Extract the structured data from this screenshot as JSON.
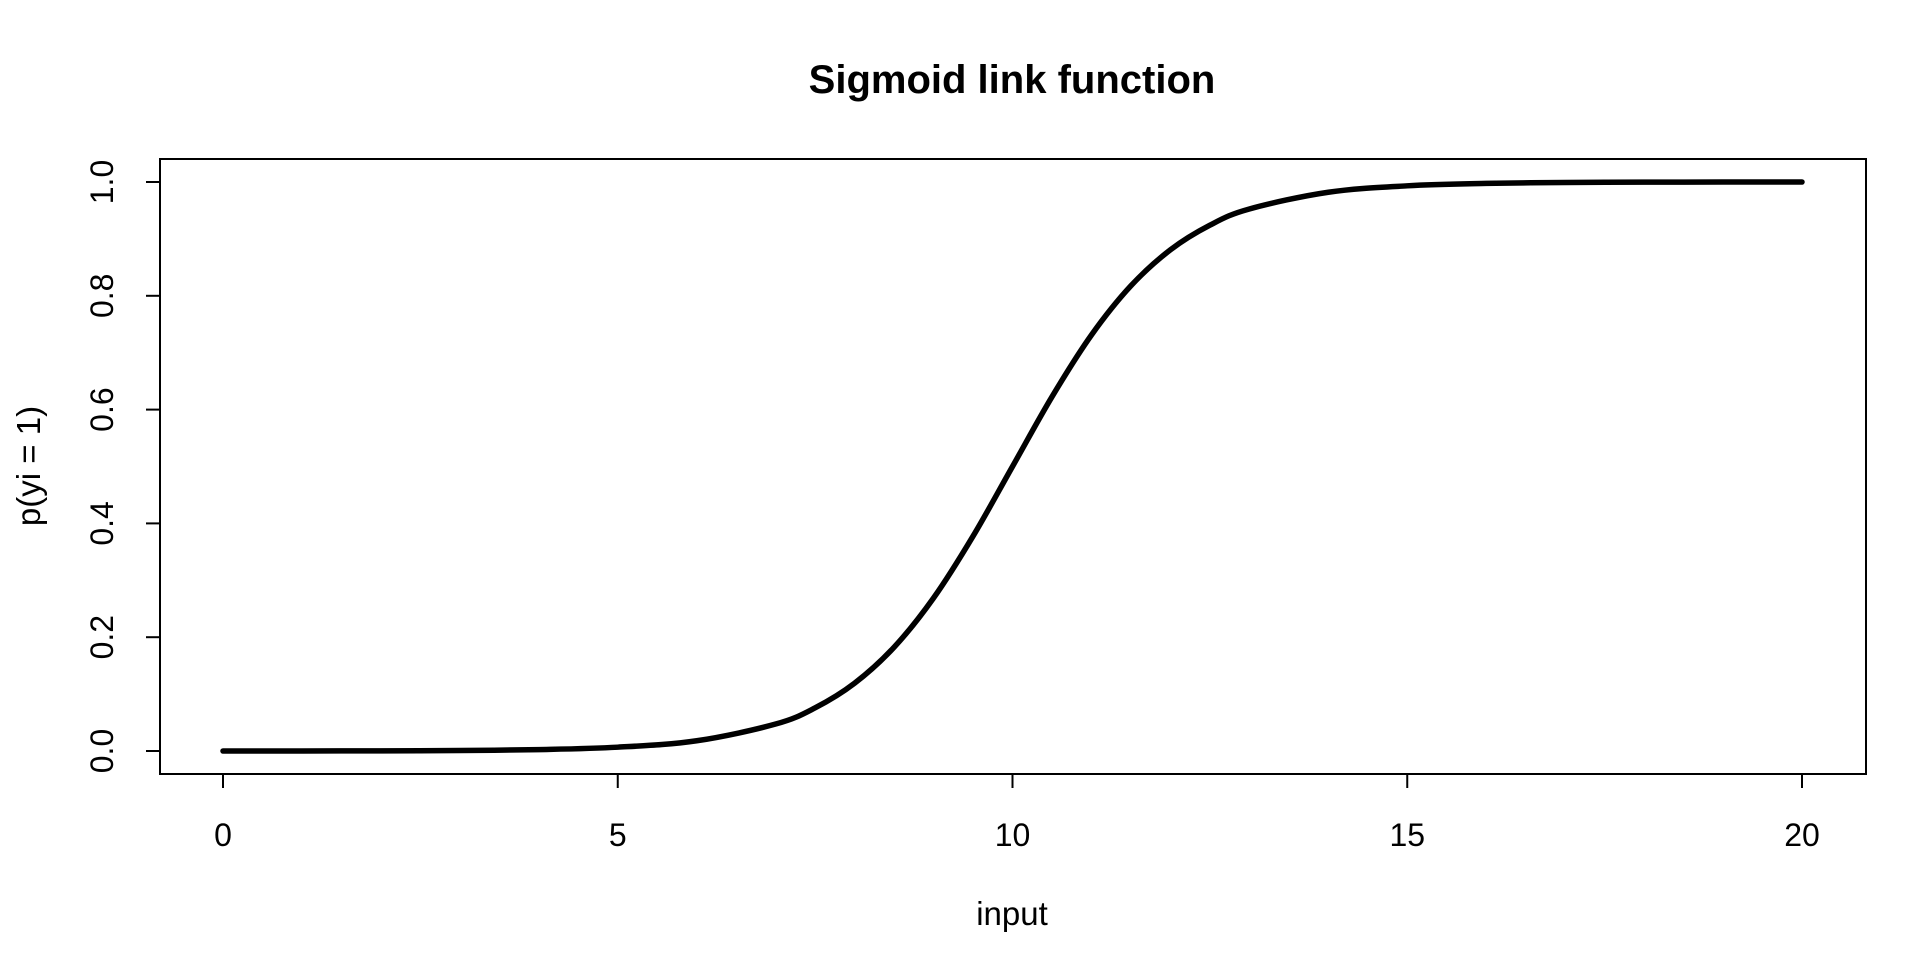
{
  "chart_data": {
    "type": "line",
    "title": "Sigmoid link function",
    "xlabel": "input",
    "ylabel": "p(yi = 1)",
    "xlim": [
      0,
      20
    ],
    "ylim": [
      0,
      1
    ],
    "x_ticks": [
      0,
      5,
      10,
      15,
      20
    ],
    "x_tick_labels": [
      "0",
      "5",
      "10",
      "15",
      "20"
    ],
    "y_ticks": [
      0,
      0.2,
      0.4,
      0.6,
      0.8,
      1
    ],
    "y_tick_labels": [
      "0.0",
      "0.2",
      "0.4",
      "0.6",
      "0.8",
      "1.0"
    ],
    "grid": false,
    "line_color": "#000000",
    "series": [
      {
        "x": [
          0,
          1,
          2,
          3,
          4,
          5,
          6,
          7,
          7.5,
          8,
          8.5,
          9,
          9.5,
          10,
          10.5,
          11,
          11.5,
          12,
          12.5,
          13,
          14,
          15,
          16,
          17,
          18,
          19,
          20
        ],
        "values": [
          0.0,
          0.0001,
          0.0003,
          0.0009,
          0.0025,
          0.0067,
          0.018,
          0.0474,
          0.0759,
          0.1192,
          0.1824,
          0.2689,
          0.3775,
          0.5,
          0.6225,
          0.7311,
          0.8176,
          0.8808,
          0.9241,
          0.9526,
          0.982,
          0.9933,
          0.9975,
          0.9991,
          0.9997,
          0.9999,
          1.0
        ]
      }
    ]
  }
}
